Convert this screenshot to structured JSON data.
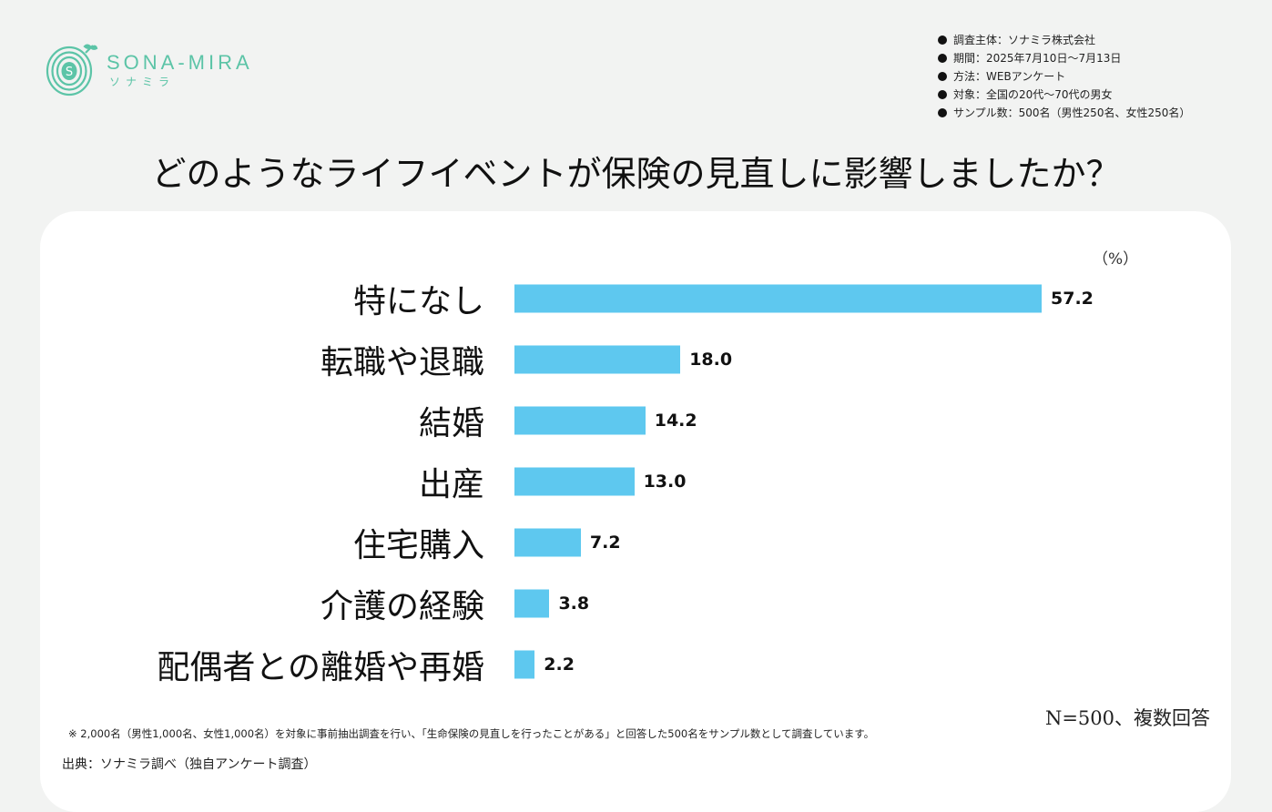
{
  "logo": {
    "name": "SONA-MIRA",
    "sub": "ソナミラ",
    "mark_letter": "S",
    "brand_color": "#5cc4a7"
  },
  "survey_info": [
    "調査主体：ソナミラ株式会社",
    "期間：2025年7月10日～7月13日",
    "方法：WEBアンケート",
    "対象：全国の20代～70代の男女",
    "サンプル数：500名（男性250名、女性250名）"
  ],
  "chart_data": {
    "type": "bar",
    "orientation": "horizontal",
    "title": "どのようなライフイベントが保険の見直しに影響しましたか？",
    "unit_label": "（%）",
    "categories": [
      "特になし",
      "転職や退職",
      "結婚",
      "出産",
      "住宅購入",
      "介護の経験",
      "配偶者との離婚や再婚"
    ],
    "values": [
      57.2,
      18.0,
      14.2,
      13.0,
      7.2,
      3.8,
      2.2
    ],
    "value_labels": [
      "57.2",
      "18.0",
      "14.2",
      "13.0",
      "7.2",
      "3.8",
      "2.2"
    ],
    "bar_color": "#5ec8ef",
    "xlabel": "",
    "ylabel": "",
    "xlim": [
      0,
      57.2
    ],
    "grid": false,
    "legend": "none"
  },
  "footer": {
    "n_label": "N=500、複数回答",
    "note": "※ 2,000名（男性1,000名、女性1,000名）を対象に事前抽出調査を行い、「生命保険の見直しを行ったことがある」と回答した500名をサンプル数として調査しています。",
    "source": "出典：ソナミラ調べ（独自アンケート調査）"
  }
}
